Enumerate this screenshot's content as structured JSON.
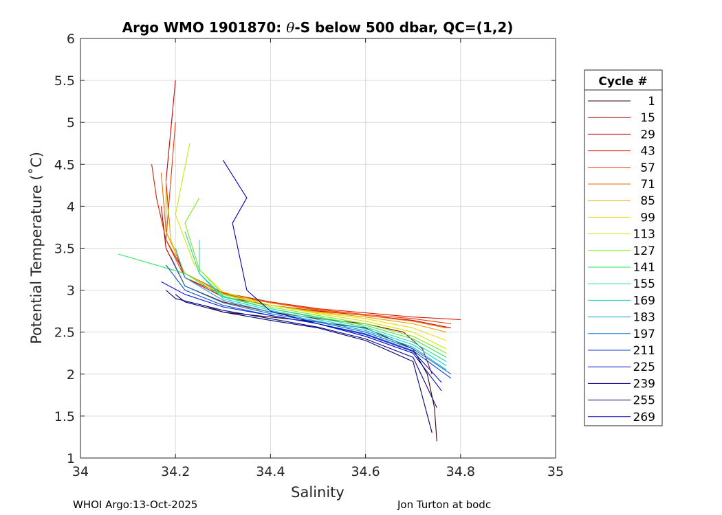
{
  "chart_data": {
    "type": "line",
    "title": "Argo WMO 1901870: θ-S below 500 dbar,  QC=(1,2)",
    "title_parts": {
      "prefix": "Argo WMO 1901870: ",
      "theta": "θ",
      "suffix": "-S below 500 dbar,  QC=(1,2)"
    },
    "xlabel": "Salinity",
    "ylabel": "Potential Temperature (˚C)",
    "xlim": [
      34,
      35
    ],
    "ylim": [
      1,
      6
    ],
    "xticks": [
      "34",
      "34.2",
      "34.4",
      "34.6",
      "34.8",
      "35"
    ],
    "yticks": [
      "1",
      "1.5",
      "2",
      "2.5",
      "3",
      "3.5",
      "4",
      "4.5",
      "5",
      "5.5",
      "6"
    ],
    "grid": true,
    "legend": {
      "title": "Cycle #",
      "placement": "right",
      "entries": [
        {
          "label": "1",
          "color": "#3a0000"
        },
        {
          "label": "15",
          "color": "#a00000"
        },
        {
          "label": "29",
          "color": "#cc0000"
        },
        {
          "label": "43",
          "color": "#dd1a00"
        },
        {
          "label": "57",
          "color": "#e63a00"
        },
        {
          "label": "71",
          "color": "#ee6a00"
        },
        {
          "label": "85",
          "color": "#e6a000"
        },
        {
          "label": "99",
          "color": "#f2dc00"
        },
        {
          "label": "113",
          "color": "#c8ee00"
        },
        {
          "label": "127",
          "color": "#82e81e"
        },
        {
          "label": "141",
          "color": "#2ee65a"
        },
        {
          "label": "155",
          "color": "#1edc96"
        },
        {
          "label": "169",
          "color": "#18d2cc"
        },
        {
          "label": "183",
          "color": "#10a6e0"
        },
        {
          "label": "197",
          "color": "#0a6ecc"
        },
        {
          "label": "211",
          "color": "#0a46c8"
        },
        {
          "label": "225",
          "color": "#0014dc"
        },
        {
          "label": "239",
          "color": "#00008c"
        },
        {
          "label": "255",
          "color": "#00006a"
        },
        {
          "label": "269",
          "color": "#0000b4"
        }
      ]
    },
    "series": [
      {
        "name": "1",
        "color": "#3a0000",
        "s": [
          34.75,
          34.745,
          34.73,
          34.7,
          34.6,
          34.5,
          34.4,
          34.3,
          34.26
        ],
        "t": [
          1.2,
          1.6,
          2.0,
          2.3,
          2.55,
          2.62,
          2.68,
          2.74,
          2.82
        ]
      },
      {
        "name": "15",
        "color": "#a00000",
        "s": [
          34.74,
          34.72,
          34.68,
          34.6,
          34.5,
          34.4,
          34.3,
          34.22,
          34.18,
          34.17
        ],
        "t": [
          2.0,
          2.3,
          2.5,
          2.6,
          2.66,
          2.74,
          2.86,
          3.05,
          3.5,
          4.0
        ]
      },
      {
        "name": "29",
        "color": "#cc0000",
        "s": [
          34.78,
          34.7,
          34.6,
          34.5,
          34.4,
          34.3,
          34.22,
          34.19,
          34.18,
          34.2
        ],
        "t": [
          2.55,
          2.64,
          2.7,
          2.75,
          2.82,
          2.92,
          3.15,
          3.6,
          4.3,
          5.5
        ]
      },
      {
        "name": "43",
        "color": "#dd1a00",
        "s": [
          34.8,
          34.7,
          34.6,
          34.5,
          34.4,
          34.3,
          34.22,
          34.18,
          34.16,
          34.15
        ],
        "t": [
          2.65,
          2.68,
          2.73,
          2.78,
          2.86,
          2.97,
          3.2,
          3.6,
          4.1,
          4.5
        ]
      },
      {
        "name": "57",
        "color": "#e63a00",
        "s": [
          34.78,
          34.7,
          34.6,
          34.5,
          34.4,
          34.3,
          34.22,
          34.18,
          34.2
        ],
        "t": [
          2.6,
          2.66,
          2.71,
          2.77,
          2.85,
          2.95,
          3.15,
          3.6,
          5.0
        ]
      },
      {
        "name": "71",
        "color": "#ee6a00",
        "s": [
          34.77,
          34.7,
          34.6,
          34.5,
          34.4,
          34.3,
          34.22,
          34.18,
          34.17
        ],
        "t": [
          2.55,
          2.63,
          2.7,
          2.76,
          2.85,
          2.96,
          3.2,
          3.7,
          4.4
        ]
      },
      {
        "name": "85",
        "color": "#e6a000",
        "s": [
          34.77,
          34.7,
          34.6,
          34.5,
          34.4,
          34.3,
          34.22,
          34.18,
          34.18
        ],
        "t": [
          2.5,
          2.6,
          2.68,
          2.74,
          2.82,
          2.95,
          3.2,
          3.7,
          4.3
        ]
      },
      {
        "name": "99",
        "color": "#f2dc00",
        "s": [
          34.77,
          34.7,
          34.6,
          34.5,
          34.4,
          34.3,
          34.22,
          34.19,
          34.18
        ],
        "t": [
          2.4,
          2.55,
          2.66,
          2.73,
          2.82,
          2.95,
          3.2,
          3.6,
          4.2
        ]
      },
      {
        "name": "113",
        "color": "#c8ee00",
        "s": [
          34.77,
          34.7,
          34.6,
          34.5,
          34.4,
          34.3,
          34.24,
          34.2,
          34.23
        ],
        "t": [
          2.3,
          2.5,
          2.63,
          2.72,
          2.82,
          2.98,
          3.3,
          3.9,
          4.75
        ]
      },
      {
        "name": "127",
        "color": "#82e81e",
        "s": [
          34.77,
          34.7,
          34.6,
          34.5,
          34.4,
          34.3,
          34.25,
          34.22,
          34.25
        ],
        "t": [
          2.25,
          2.45,
          2.6,
          2.7,
          2.8,
          2.95,
          3.25,
          3.8,
          4.1
        ]
      },
      {
        "name": "141",
        "color": "#2ee65a",
        "s": [
          34.77,
          34.7,
          34.6,
          34.5,
          34.4,
          34.3,
          34.22,
          34.08
        ],
        "t": [
          2.2,
          2.42,
          2.58,
          2.68,
          2.78,
          2.92,
          3.2,
          3.43
        ]
      },
      {
        "name": "155",
        "color": "#1edc96",
        "s": [
          34.77,
          34.7,
          34.6,
          34.5,
          34.4,
          34.3,
          34.25,
          34.22
        ],
        "t": [
          2.15,
          2.38,
          2.56,
          2.67,
          2.78,
          2.93,
          3.2,
          3.7
        ]
      },
      {
        "name": "169",
        "color": "#18d2cc",
        "s": [
          34.77,
          34.7,
          34.6,
          34.5,
          34.4,
          34.3,
          34.25,
          34.25
        ],
        "t": [
          2.1,
          2.35,
          2.54,
          2.65,
          2.76,
          2.9,
          3.2,
          3.6
        ]
      },
      {
        "name": "183",
        "color": "#10a6e0",
        "s": [
          34.77,
          34.7,
          34.6,
          34.5,
          34.4,
          34.3,
          34.22,
          34.2
        ],
        "t": [
          2.05,
          2.32,
          2.52,
          2.63,
          2.74,
          2.88,
          3.15,
          3.5
        ]
      },
      {
        "name": "197",
        "color": "#0a6ecc",
        "s": [
          34.78,
          34.7,
          34.6,
          34.5,
          34.4,
          34.3,
          34.22,
          34.19
        ],
        "t": [
          2.0,
          2.3,
          2.5,
          2.62,
          2.72,
          2.85,
          3.05,
          3.4
        ]
      },
      {
        "name": "211",
        "color": "#0a46c8",
        "s": [
          34.78,
          34.7,
          34.6,
          34.5,
          34.4,
          34.3,
          34.22,
          34.18
        ],
        "t": [
          1.95,
          2.28,
          2.48,
          2.6,
          2.7,
          2.82,
          3.0,
          3.3
        ]
      },
      {
        "name": "225",
        "color": "#0014dc",
        "s": [
          34.76,
          34.7,
          34.6,
          34.5,
          34.4,
          34.3,
          34.22,
          34.17
        ],
        "t": [
          1.9,
          2.27,
          2.47,
          2.6,
          2.7,
          2.8,
          2.95,
          3.1
        ]
      },
      {
        "name": "239",
        "color": "#00008c",
        "s": [
          34.75,
          34.7,
          34.6,
          34.5,
          34.4,
          34.3,
          34.2,
          34.18
        ],
        "t": [
          1.6,
          2.2,
          2.42,
          2.56,
          2.66,
          2.76,
          2.9,
          3.0
        ]
      },
      {
        "name": "255",
        "color": "#00006a",
        "s": [
          34.74,
          34.7,
          34.6,
          34.5,
          34.4,
          34.3,
          34.22,
          34.2
        ],
        "t": [
          1.3,
          2.15,
          2.4,
          2.55,
          2.64,
          2.74,
          2.86,
          2.95
        ]
      },
      {
        "name": "269",
        "color": "#0000b4",
        "s": [
          34.76,
          34.7,
          34.6,
          34.5,
          34.4,
          34.35,
          34.32,
          34.35,
          34.3
        ],
        "t": [
          1.8,
          2.25,
          2.45,
          2.6,
          2.75,
          3.0,
          3.8,
          4.1,
          4.55
        ]
      }
    ]
  },
  "footer": {
    "left": "WHOI Argo:13-Oct-2025",
    "right": "Jon Turton at bodc"
  }
}
